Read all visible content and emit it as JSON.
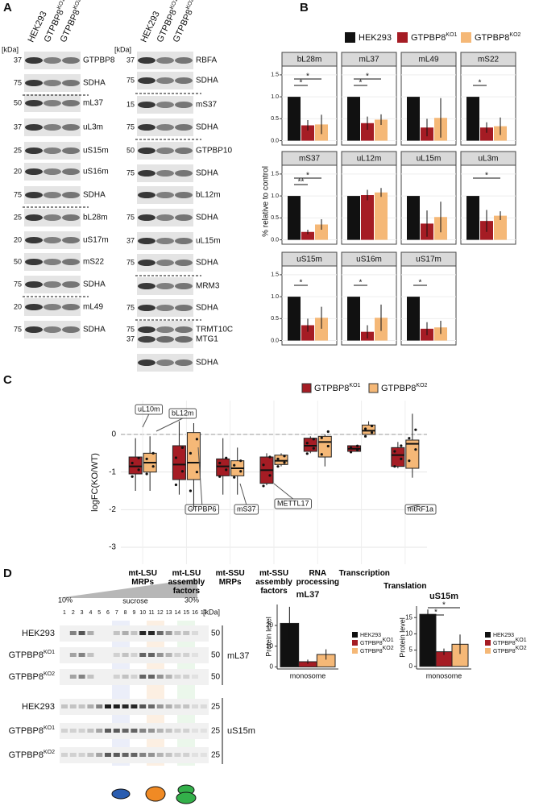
{
  "panel_labels": [
    "A",
    "B",
    "C",
    "D"
  ],
  "blots_a": {
    "unit": "[kDa]",
    "lanes": [
      {
        "name": "HEK293"
      },
      {
        "name": "GTPBP8",
        "sup": "KO1"
      },
      {
        "name": "GTPBP8",
        "sup": "KO2"
      }
    ],
    "left": [
      {
        "marker": "37",
        "protein": "GTPBP8"
      },
      {
        "marker": "75",
        "protein": "SDHA"
      },
      {
        "marker": "50",
        "protein": "mL37"
      },
      {
        "marker": "37",
        "protein": "uL3m"
      },
      {
        "marker": "25",
        "protein": "uS15m"
      },
      {
        "marker": "20",
        "protein": "uS16m"
      },
      {
        "marker": "75",
        "protein": "SDHA"
      },
      {
        "marker": "25",
        "protein": "bL28m"
      },
      {
        "marker": "20",
        "protein": "uS17m"
      },
      {
        "marker": "50",
        "protein": "mS22"
      },
      {
        "marker": "75",
        "protein": "SDHA"
      },
      {
        "marker": "20",
        "protein": "mL49"
      },
      {
        "marker": "75",
        "protein": "SDHA"
      }
    ],
    "right": [
      {
        "marker": "37",
        "protein": "RBFA"
      },
      {
        "marker": "75",
        "protein": "SDHA"
      },
      {
        "marker": "15",
        "protein": "mS37"
      },
      {
        "marker": "75",
        "protein": "SDHA"
      },
      {
        "marker": "50",
        "protein": "GTPBP10"
      },
      {
        "marker": "75",
        "protein": "SDHA"
      },
      {
        "protein": "bL12m"
      },
      {
        "marker": "75",
        "protein": "SDHA"
      },
      {
        "marker": "37",
        "protein": "uL15m"
      },
      {
        "marker": "75",
        "protein": "SDHA"
      },
      {
        "protein": "MRM3"
      },
      {
        "marker": "75",
        "protein": "SDHA"
      },
      {
        "marker": "75",
        "protein": "TRMT10C"
      },
      {
        "marker": "37",
        "protein": "MTG1"
      },
      {
        "protein": "SDHA"
      }
    ]
  },
  "gradient_d": {
    "unit": "[kDa]",
    "labels": [
      "10%",
      "sucrose",
      "30%"
    ],
    "fractions": [
      "1",
      "2",
      "3",
      "4",
      "5",
      "6",
      "7",
      "8",
      "9",
      "10",
      "11",
      "12",
      "13",
      "14",
      "15",
      "16",
      "17"
    ],
    "rows": [
      {
        "name": "HEK293",
        "marker": "50"
      },
      {
        "name": "GTPBP8",
        "sup": "KO1",
        "marker": "50"
      },
      {
        "name": "GTPBP8",
        "sup": "KO2",
        "marker": "50"
      },
      {
        "name": "HEK293",
        "marker": "25"
      },
      {
        "name": "GTPBP8",
        "sup": "KO1",
        "marker": "25"
      },
      {
        "name": "GTPBP8",
        "sup": "KO2",
        "marker": "25"
      }
    ],
    "proteins": [
      "mL37",
      "uS15m"
    ]
  },
  "chart_data": [
    {
      "type": "facet_bar",
      "ylabel": "% relative to control",
      "ylim": [
        -0.1,
        1.7
      ],
      "yticks": [
        {
          "value": 0,
          "label": "0.0"
        },
        {
          "value": 0.5,
          "label": "0.5"
        },
        {
          "value": 1,
          "label": "1.0"
        },
        {
          "value": 1.5,
          "label": "1.5"
        }
      ],
      "series": [
        {
          "name": "HEK293",
          "color": "#111111"
        },
        {
          "name": "GTPBP8",
          "sup": "KO1",
          "color": "#a51c24"
        },
        {
          "name": "GTPBP8",
          "sup": "KO2",
          "color": "#f5b877"
        }
      ],
      "facets": [
        {
          "title": "bL28m",
          "values": [
            1,
            0.35,
            0.37
          ],
          "errors": [
            0,
            0.12,
            0.22
          ],
          "signif": [
            "*",
            "*"
          ]
        },
        {
          "title": "mL37",
          "values": [
            1,
            0.4,
            0.48
          ],
          "errors": [
            0,
            0.15,
            0.12
          ],
          "signif": [
            "*",
            "*"
          ]
        },
        {
          "title": "mL49",
          "values": [
            1,
            0.3,
            0.52
          ],
          "errors": [
            0,
            0.2,
            0.45
          ],
          "signif": [
            null,
            null
          ]
        },
        {
          "title": "mS22",
          "values": [
            1,
            0.3,
            0.33
          ],
          "errors": [
            0,
            0.12,
            0.2
          ],
          "signif": [
            "*",
            null
          ]
        },
        {
          "title": "mS37",
          "values": [
            1,
            0.18,
            0.35
          ],
          "errors": [
            0,
            0.05,
            0.12
          ],
          "signif": [
            "**",
            "*"
          ]
        },
        {
          "title": "uL12m",
          "values": [
            1,
            1.02,
            1.08
          ],
          "errors": [
            0,
            0.12,
            0.1
          ],
          "signif": [
            null,
            null
          ]
        },
        {
          "title": "uL15m",
          "values": [
            1,
            0.37,
            0.52
          ],
          "errors": [
            0,
            0.3,
            0.35
          ],
          "signif": [
            null,
            null
          ]
        },
        {
          "title": "uL3m",
          "values": [
            1,
            0.43,
            0.55
          ],
          "errors": [
            0,
            0.25,
            0.1
          ],
          "signif": [
            null,
            "*"
          ]
        },
        {
          "title": "uS15m",
          "values": [
            1,
            0.35,
            0.52
          ],
          "errors": [
            0,
            0.15,
            0.25
          ],
          "signif": [
            "*",
            null
          ]
        },
        {
          "title": "uS16m",
          "values": [
            1,
            0.2,
            0.52
          ],
          "errors": [
            0,
            0.15,
            0.3
          ],
          "signif": [
            "*",
            null
          ]
        },
        {
          "title": "uS17m",
          "values": [
            1,
            0.27,
            0.3
          ],
          "errors": [
            0,
            0.15,
            0.15
          ],
          "signif": [
            "*",
            null
          ]
        }
      ]
    },
    {
      "type": "box",
      "ylabel": "logFC(KO/WT)",
      "ylim": [
        -3.45,
        0.9
      ],
      "yticks": [
        -3,
        -2,
        -1,
        0
      ],
      "reference_line": 0,
      "categories": [
        "mt-LSU MRPs",
        "mt-LSU assembly factors",
        "mt-SSU MRPs",
        "mt-SSU assembly factors",
        "RNA processing",
        "Transcription",
        "Translation"
      ],
      "series": [
        {
          "name": "GTPBP8",
          "sup": "KO1",
          "color": "#a51c24",
          "boxes": [
            {
              "low": -1.5,
              "q1": -1.05,
              "median": -0.85,
              "q3": -0.6,
              "high": -0.1
            },
            {
              "low": -1.6,
              "q1": -1.2,
              "median": -0.8,
              "q3": -0.3,
              "high": 0.35
            },
            {
              "low": -1.6,
              "q1": -1.1,
              "median": -0.85,
              "q3": -0.65,
              "high": -0.1
            },
            {
              "low": -1.35,
              "q1": -1.3,
              "median": -0.95,
              "q3": -0.6,
              "high": -0.5
            },
            {
              "low": -0.5,
              "q1": -0.45,
              "median": -0.3,
              "q3": -0.1,
              "high": -0.05
            },
            {
              "low": -0.45,
              "q1": -0.45,
              "median": -0.38,
              "q3": -0.3,
              "high": -0.3
            },
            {
              "low": -0.9,
              "q1": -0.85,
              "median": -0.55,
              "q3": -0.35,
              "high": -0.2
            }
          ]
        },
        {
          "name": "GTPBP8",
          "sup": "KO2",
          "color": "#f5b877",
          "boxes": [
            {
              "low": -1.5,
              "q1": -1.0,
              "median": -0.75,
              "q3": -0.5,
              "high": -0.05
            },
            {
              "low": -2.0,
              "q1": -1.2,
              "median": -0.75,
              "q3": 0.05,
              "high": 0.3
            },
            {
              "low": -1.6,
              "q1": -1.1,
              "median": -0.9,
              "q3": -0.7,
              "high": -0.35
            },
            {
              "low": -0.85,
              "q1": -0.8,
              "median": -0.7,
              "q3": -0.55,
              "high": -0.5
            },
            {
              "low": -0.85,
              "q1": -0.6,
              "median": -0.2,
              "q3": -0.05,
              "high": 0
            },
            {
              "low": 0,
              "q1": 0,
              "median": 0.1,
              "q3": 0.25,
              "high": 0.35
            },
            {
              "low": -1.15,
              "q1": -0.9,
              "median": -0.25,
              "q3": -0.15,
              "high": 0.55
            }
          ]
        }
      ],
      "annotations": [
        "uL10m",
        "bL12m",
        "GTPBP6",
        "mS37",
        "METTL17",
        "mtRF1a"
      ]
    },
    {
      "type": "bar",
      "title": "mL37",
      "ylabel": "Protein level",
      "categories": [
        "monosome"
      ],
      "ylim": [
        -1,
        34
      ],
      "yticks": [
        0,
        10,
        20
      ],
      "series": [
        {
          "name": "HEK293",
          "color": "#111111",
          "values": [
            21
          ],
          "errors": [
            8
          ]
        },
        {
          "name": "GTPBP8",
          "sup": "KO1",
          "color": "#a51c24",
          "values": [
            2.5
          ],
          "errors": [
            1
          ]
        },
        {
          "name": "GTPBP8",
          "sup": "KO2",
          "color": "#f5b877",
          "values": [
            6
          ],
          "errors": [
            2.5
          ]
        }
      ]
    },
    {
      "type": "bar",
      "title": "uS15m",
      "ylabel": "Protein level",
      "categories": [
        "monosome"
      ],
      "ylim": [
        -0.8,
        21
      ],
      "yticks": [
        0,
        5,
        10,
        15
      ],
      "signif": [
        "*",
        "*"
      ],
      "series": [
        {
          "name": "HEK293",
          "color": "#111111",
          "values": [
            16
          ],
          "errors": [
            1.5
          ]
        },
        {
          "name": "GTPBP8",
          "sup": "KO1",
          "color": "#a51c24",
          "values": [
            4.5
          ],
          "errors": [
            1
          ]
        },
        {
          "name": "GTPBP8",
          "sup": "KO2",
          "color": "#f5b877",
          "values": [
            6.8
          ],
          "errors": [
            3
          ]
        }
      ]
    }
  ]
}
